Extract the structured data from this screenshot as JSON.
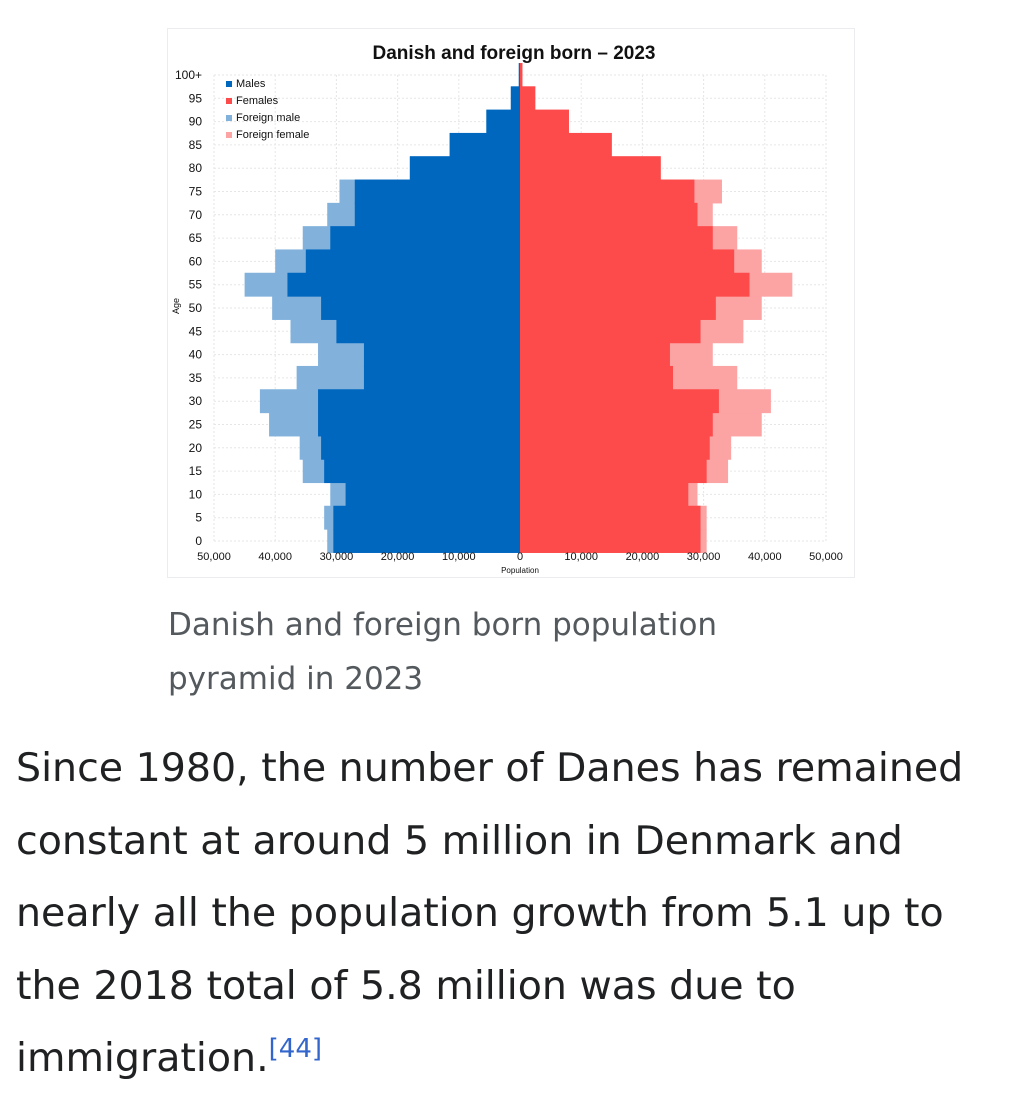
{
  "caption": "Danish and foreign born population pyramid in 2023",
  "paragraph": {
    "text": "Since 1980, the number of Danes has remained constant at around 5 million in Denmark and nearly all the population growth from 5.1 up to the 2018 total of 5.8 million was due to immigration.",
    "ref": "[44]"
  },
  "colors": {
    "males": "#0067bf",
    "females": "#fd4a4a",
    "foreign_male": "#82b2dc",
    "foreign_female": "#fca3a4"
  },
  "chart_data": {
    "type": "bar",
    "orientation": "horizontal-pyramid",
    "title": "Danish and foreign born – 2023",
    "xlabel": "Population",
    "ylabel": "Age",
    "xlim": [
      -50000,
      50000
    ],
    "x_tick_labels": [
      "50,000",
      "40,000",
      "30,000",
      "20,000",
      "10,000",
      "0",
      "10,000",
      "20,000",
      "30,000",
      "40,000",
      "50,000"
    ],
    "y_tick_labels": [
      "0",
      "5",
      "10",
      "15",
      "20",
      "25",
      "30",
      "35",
      "40",
      "45",
      "50",
      "55",
      "60",
      "65",
      "70",
      "75",
      "80",
      "85",
      "90",
      "95",
      "100+"
    ],
    "legend": [
      "Males",
      "Females",
      "Foreign male",
      "Foreign female"
    ],
    "legend_position": "top-left",
    "grid": true,
    "ages": [
      "0",
      "5",
      "10",
      "15",
      "20",
      "25",
      "30",
      "35",
      "40",
      "45",
      "50",
      "55",
      "60",
      "65",
      "70",
      "75",
      "80",
      "85",
      "90",
      "95",
      "100+"
    ],
    "series": [
      {
        "name": "Males",
        "values": [
          30500,
          30500,
          28500,
          32000,
          32500,
          33000,
          33000,
          25500,
          25500,
          30000,
          32500,
          38000,
          35000,
          31000,
          27000,
          27000,
          18000,
          11500,
          5500,
          1500,
          200
        ]
      },
      {
        "name": "Females",
        "values": [
          29500,
          29500,
          27500,
          30500,
          31000,
          31500,
          32500,
          25000,
          24500,
          29500,
          32000,
          37500,
          35000,
          31500,
          29000,
          28500,
          23000,
          15000,
          8000,
          2500,
          400
        ]
      },
      {
        "name": "Foreign male",
        "values": [
          31500,
          32000,
          31000,
          35500,
          36000,
          41000,
          42500,
          36500,
          33000,
          37500,
          40500,
          45000,
          40000,
          35500,
          31500,
          29500,
          18000,
          11500,
          5500,
          1500,
          200
        ]
      },
      {
        "name": "Foreign female",
        "values": [
          30500,
          30500,
          29000,
          34000,
          34500,
          39500,
          41000,
          35500,
          31500,
          36500,
          39500,
          44500,
          39500,
          35500,
          31500,
          33000,
          23000,
          15000,
          8000,
          2500,
          400
        ]
      }
    ]
  }
}
